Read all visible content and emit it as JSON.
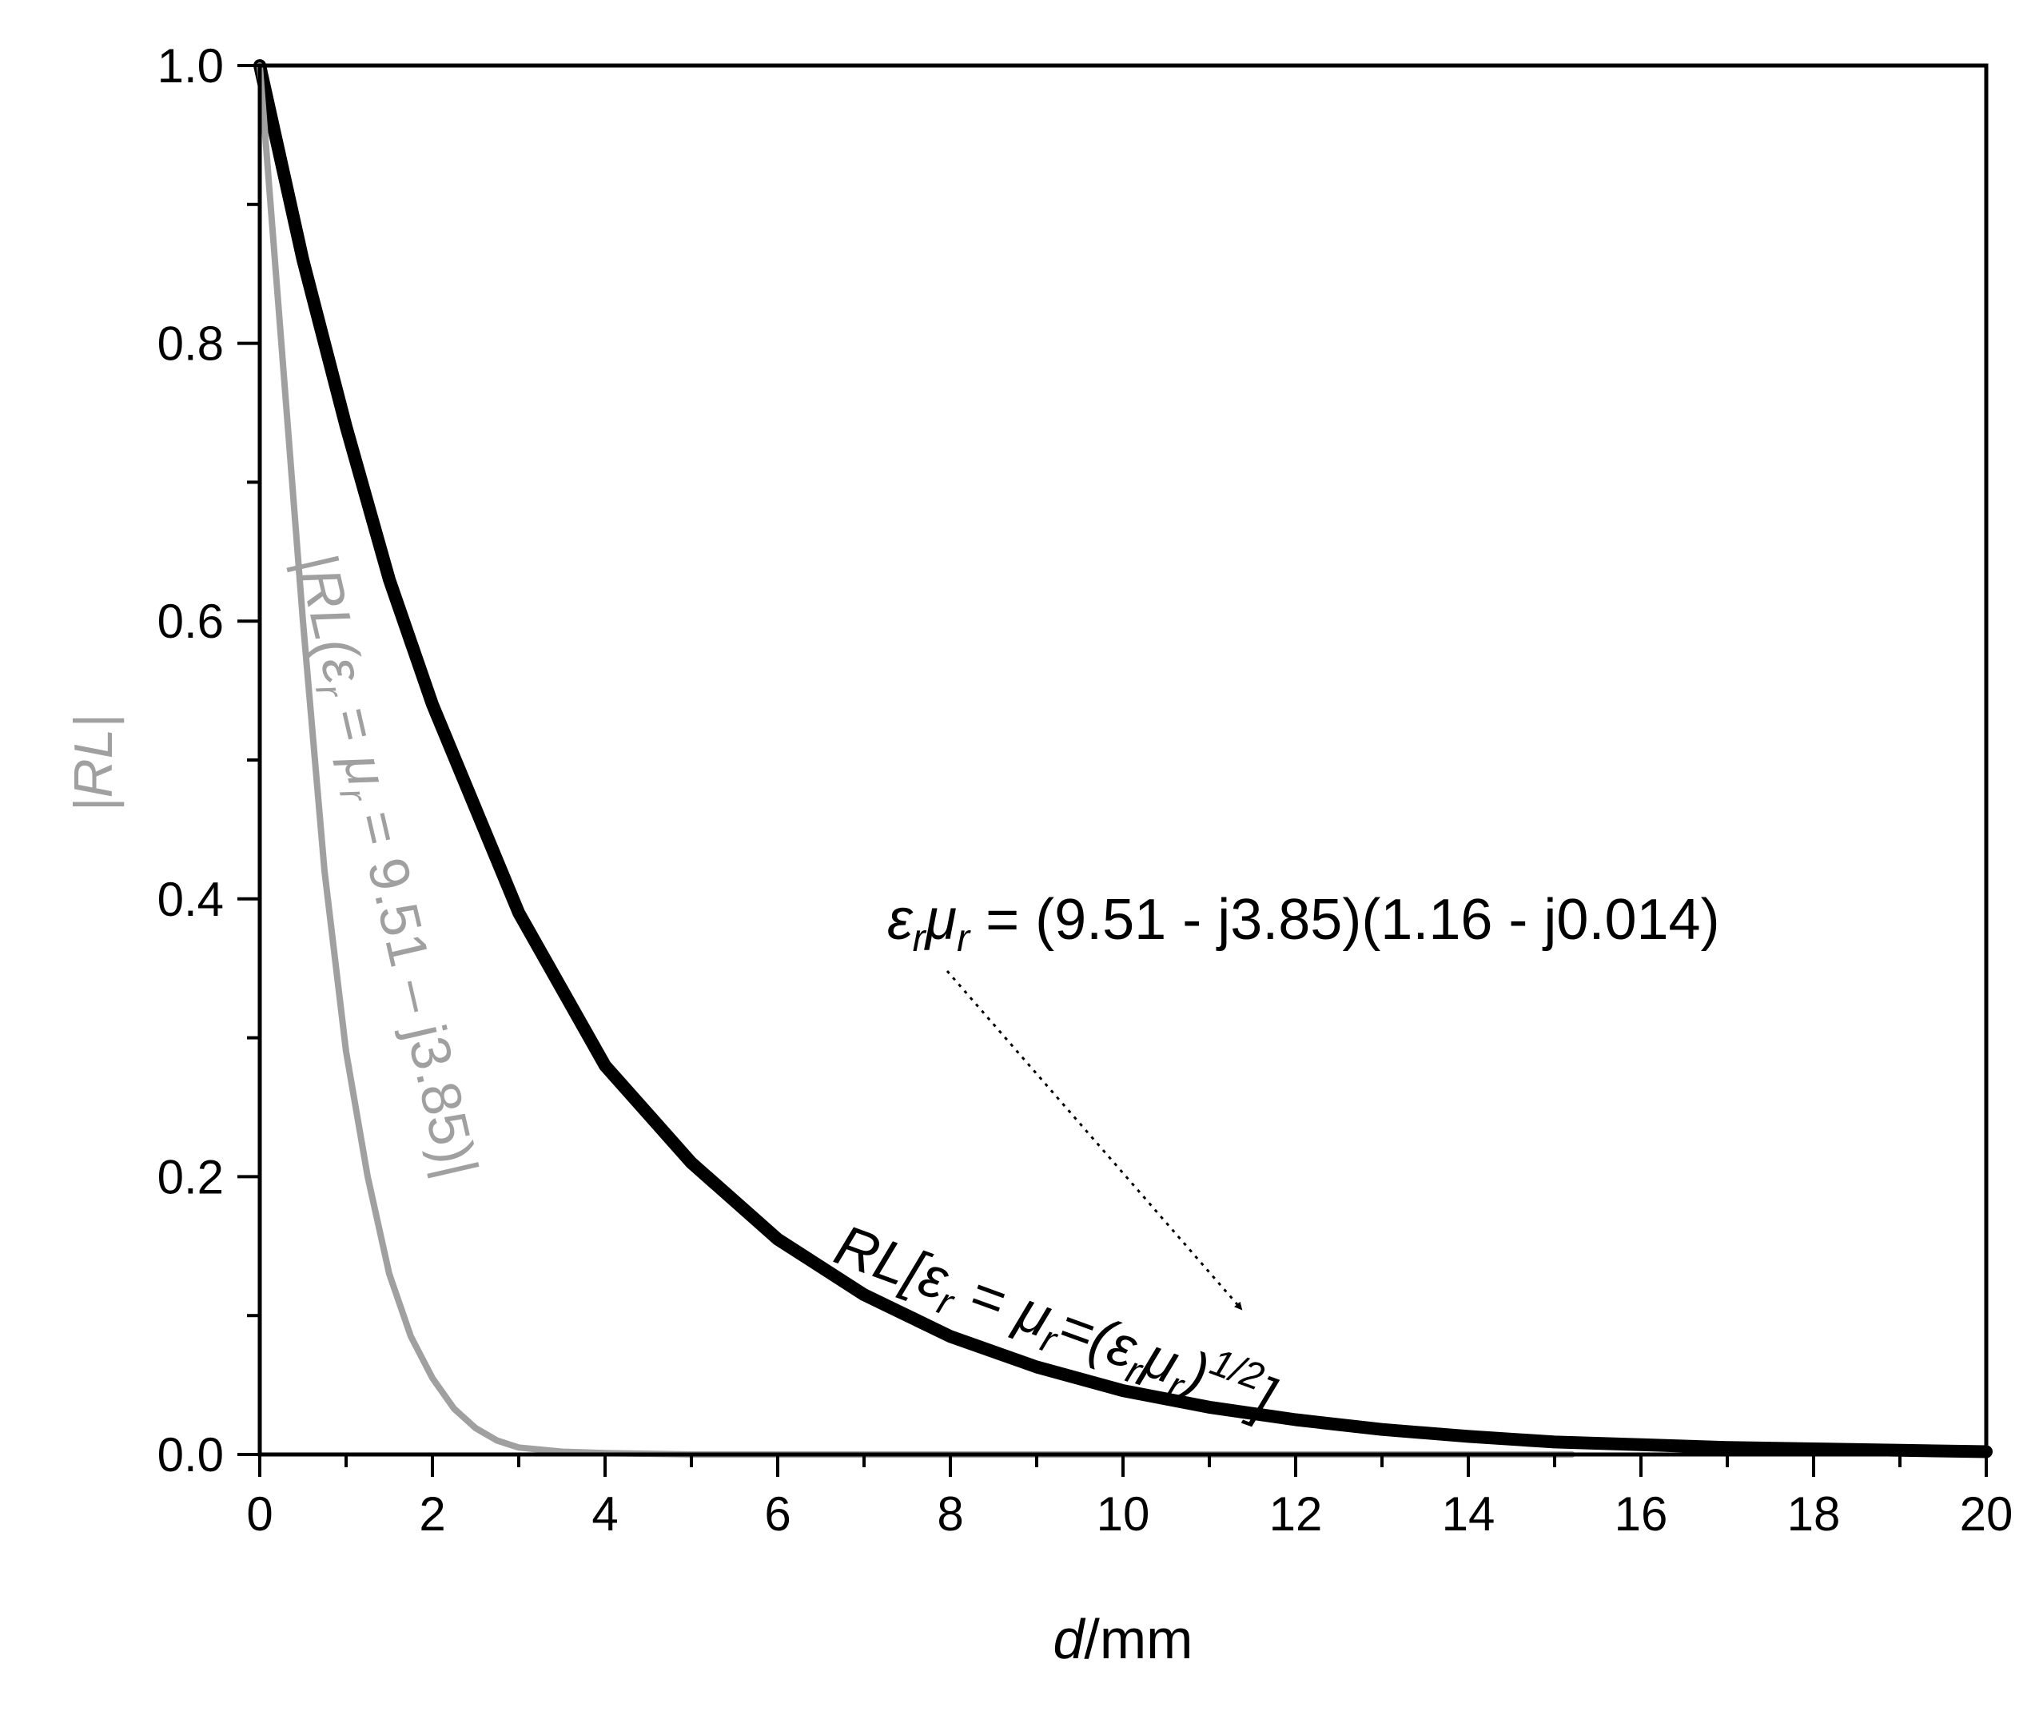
{
  "chart_data": {
    "type": "line",
    "xlabel": {
      "italic": "d",
      "rest": "/mm"
    },
    "ylabel": "|RL|",
    "xlim": [
      0,
      20
    ],
    "ylim": [
      0,
      1
    ],
    "xticks": [
      "0",
      "2",
      "4",
      "6",
      "8",
      "10",
      "12",
      "14",
      "16",
      "18",
      "20"
    ],
    "yticks": [
      "0.0",
      "0.2",
      "0.4",
      "0.6",
      "0.8",
      "1.0"
    ],
    "grid": false,
    "legend": "none",
    "series": [
      {
        "color": "#000000",
        "x": [
          0,
          0.5,
          1,
          1.5,
          2,
          3,
          4,
          5,
          6,
          7,
          8,
          9,
          10,
          11,
          12,
          13,
          14,
          15,
          16,
          17,
          18,
          19,
          20
        ],
        "y": [
          1.0,
          0.86,
          0.74,
          0.63,
          0.54,
          0.39,
          0.28,
          0.21,
          0.155,
          0.115,
          0.085,
          0.063,
          0.046,
          0.034,
          0.025,
          0.018,
          0.013,
          0.009,
          0.007,
          0.005,
          0.004,
          0.003,
          0.002
        ]
      },
      {
        "color": "#a0a0a0",
        "x": [
          0,
          0.25,
          0.5,
          0.75,
          1,
          1.25,
          1.5,
          1.75,
          2,
          2.25,
          2.5,
          2.75,
          3,
          3.5,
          4,
          5,
          6,
          8,
          10,
          12,
          14,
          15.2
        ],
        "y": [
          1.0,
          0.8,
          0.6,
          0.42,
          0.29,
          0.2,
          0.13,
          0.085,
          0.055,
          0.033,
          0.019,
          0.01,
          0.005,
          0.002,
          0.001,
          0.0,
          0.0,
          0.0,
          0.0,
          0.0,
          0.0,
          0.0
        ]
      }
    ],
    "annotations": {
      "grey_label": {
        "pre": "|RL(",
        "eps": "ε",
        "r1": "r",
        "mid": " = ",
        "mu": "μ",
        "r2": "r",
        "post": " = 9.51 – j3.85)|"
      },
      "black_label": {
        "pre": "RL[",
        "eps": "ε",
        "r1": "r",
        "eq1": " = ",
        "mu": "μ",
        "r2": "r",
        "eq2": "=(",
        "eps2": "ε",
        "r3": "r",
        "mu2": "μ",
        "r4": "r",
        "close": ")",
        "sup": "1/2",
        "end": "]"
      },
      "product": {
        "eps": "ε",
        "r1": "r",
        "mu": "μ",
        "r2": "r",
        "rest": " = (9.51 -  j3.85)(1.16 - j0.014)"
      }
    }
  }
}
